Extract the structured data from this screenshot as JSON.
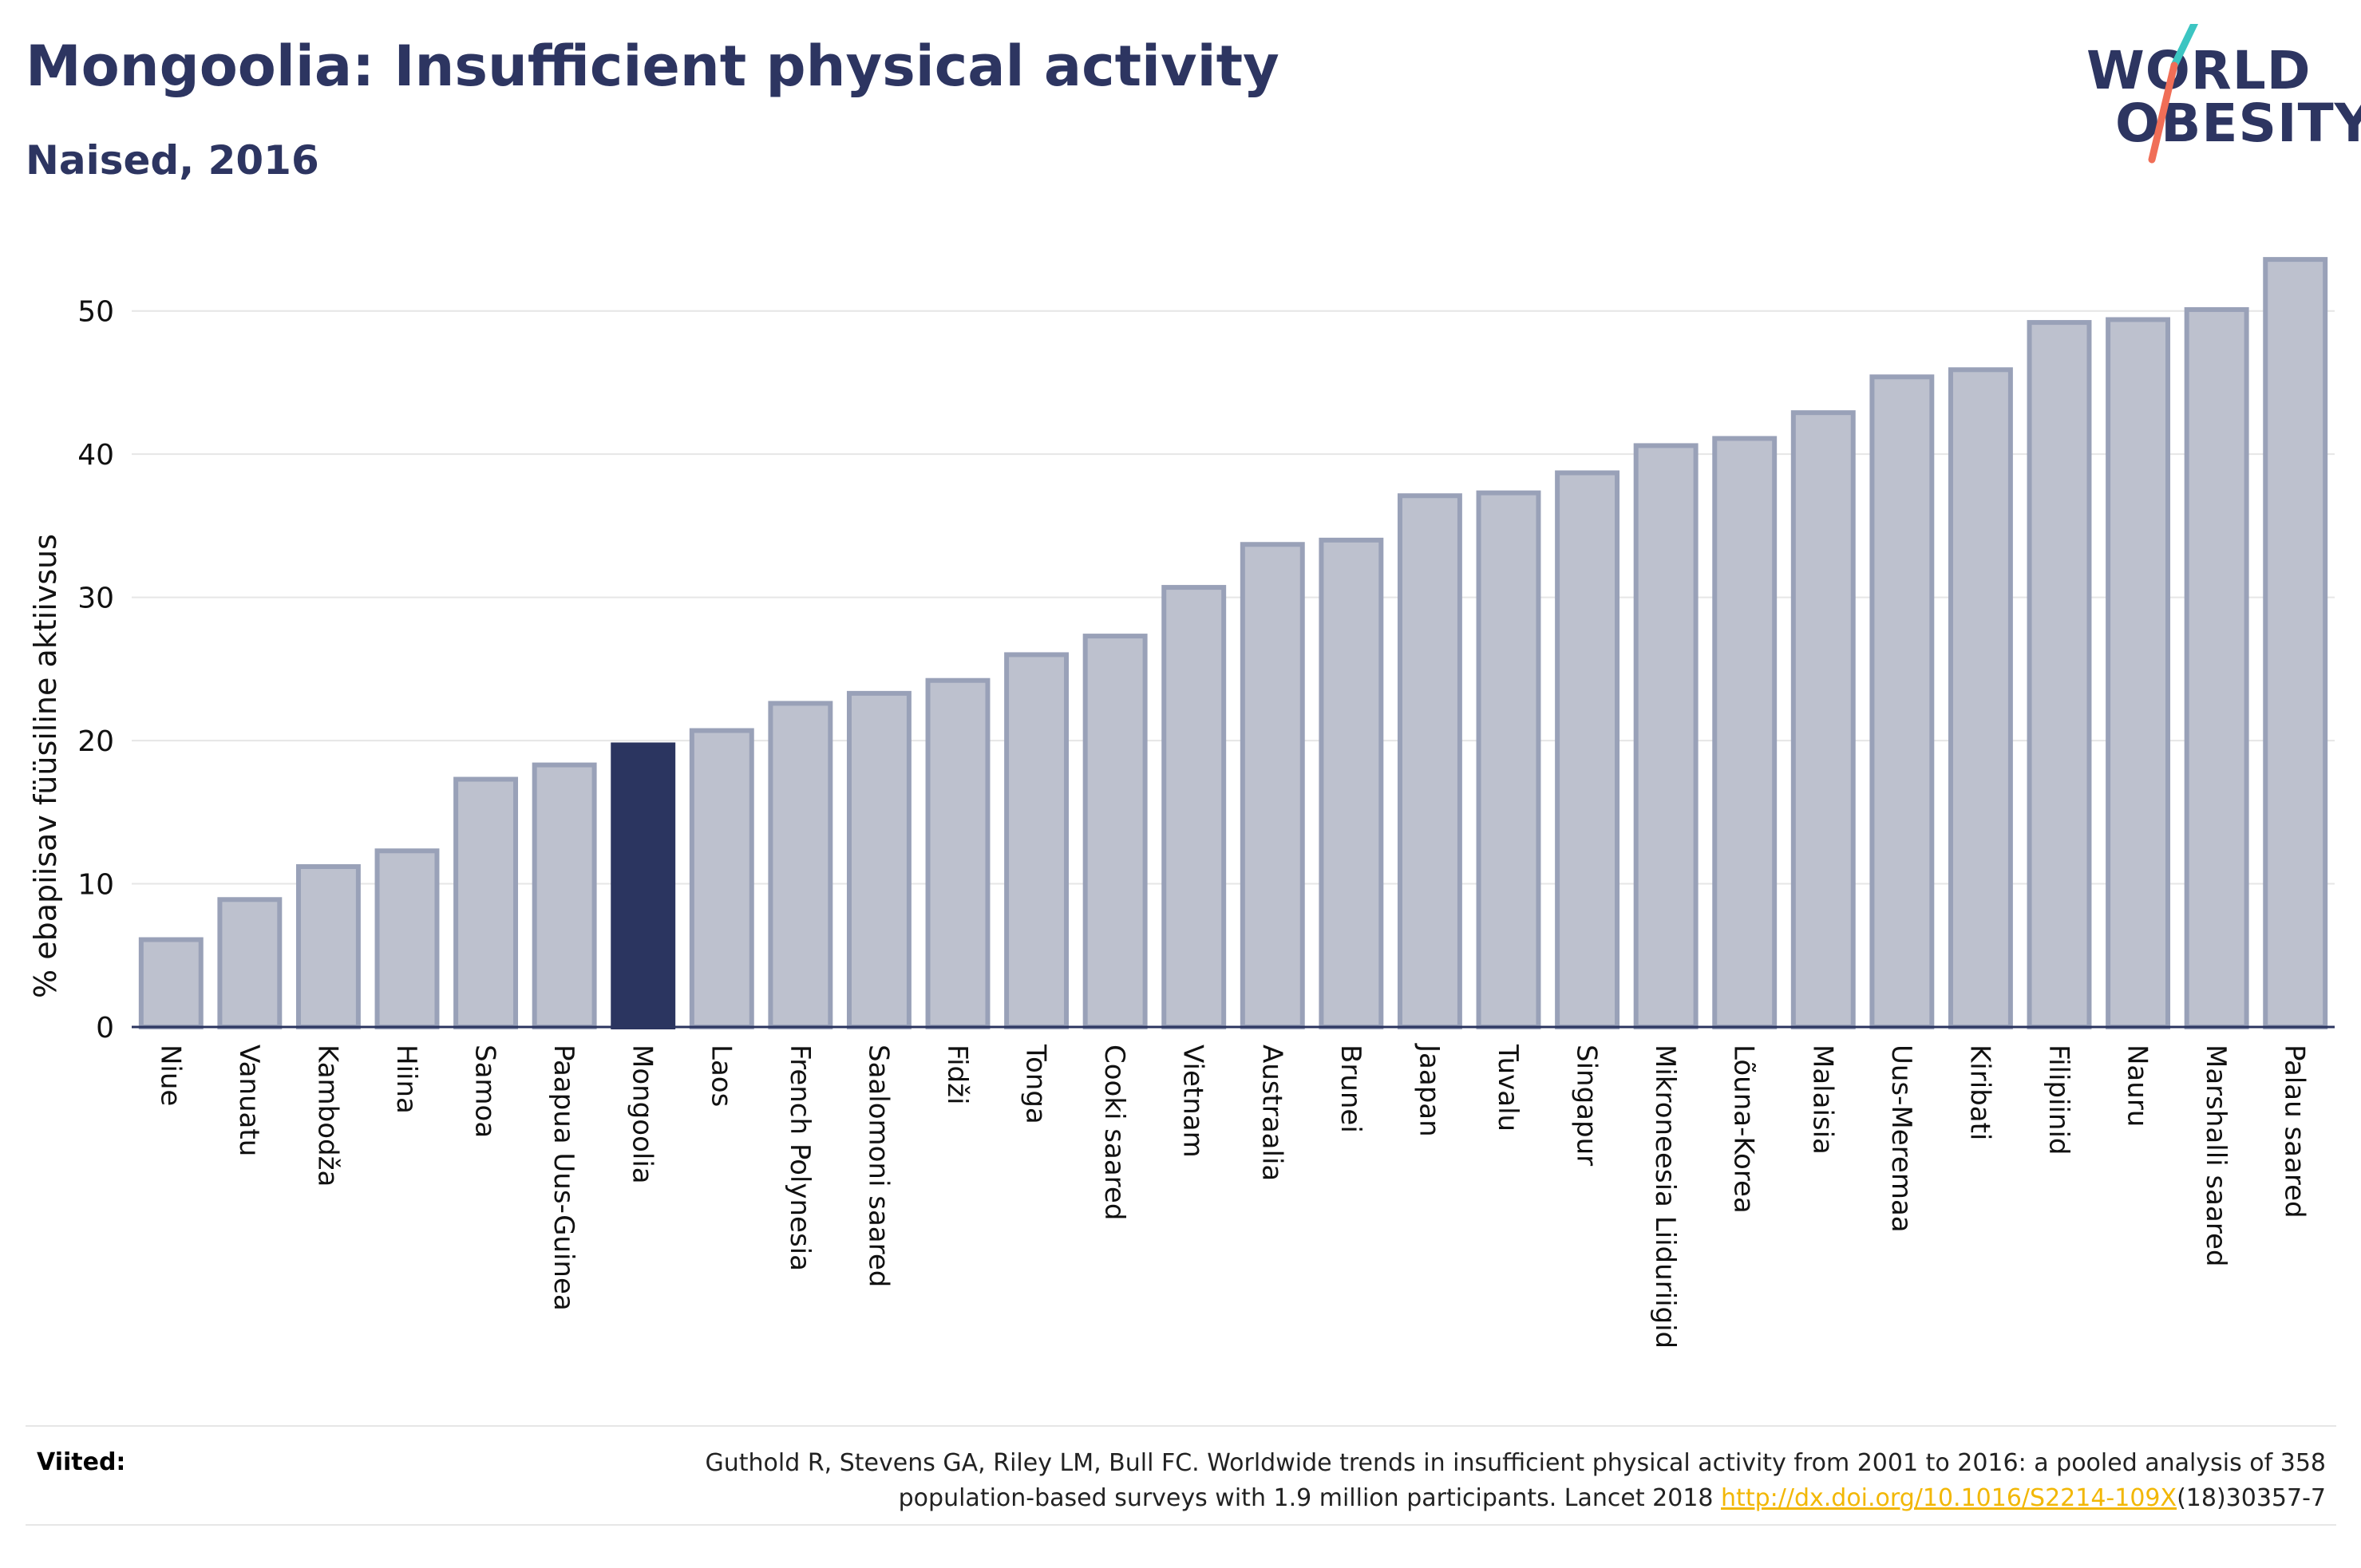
{
  "header": {
    "title": "Mongoolia: Insufficient physical activity",
    "subtitle": "Naised, 2016"
  },
  "logo": {
    "line1": "WORLD",
    "line2": "OBESITY",
    "accent_colors": [
      "#3cc5c2",
      "#f06e57"
    ]
  },
  "colors": {
    "bar_default": "#bdc1ce",
    "bar_default_stroke": "#99a1b8",
    "bar_highlight": "#2b3560",
    "axis_text": "#111111",
    "grid": "#e6e6e6"
  },
  "chart_data": {
    "type": "bar",
    "xlabel": "",
    "ylabel": "% ebapiisav füüsiline aktiivsus",
    "ylim": [
      0,
      55
    ],
    "yticks": [
      0,
      10,
      20,
      30,
      40,
      50
    ],
    "grid": true,
    "highlight": "Mongoolia",
    "categories": [
      "Niue",
      "Vanuatu",
      "Kambodža",
      "Hiina",
      "Samoa",
      "Paapua Uus-Guinea",
      "Mongoolia",
      "Laos",
      "French Polynesia",
      "Saalomoni saared",
      "Fidži",
      "Tonga",
      "Cooki saared",
      "Vietnam",
      "Austraalia",
      "Brunei",
      "Jaapan",
      "Tuvalu",
      "Singapur",
      "Mikroneesia Liiduriigid",
      "Lõuna-Korea",
      "Malaisia",
      "Uus-Meremaa",
      "Kiribati",
      "Filipiinid",
      "Nauru",
      "Marshalli saared",
      "Palau saared"
    ],
    "values": [
      6.1,
      8.9,
      11.2,
      12.3,
      17.3,
      18.3,
      19.7,
      20.7,
      22.6,
      23.3,
      24.2,
      26.0,
      27.3,
      30.7,
      33.7,
      34.0,
      37.1,
      37.3,
      38.7,
      40.6,
      41.1,
      42.9,
      45.4,
      45.9,
      49.2,
      49.4,
      50.1,
      53.6
    ]
  },
  "footer": {
    "label": "Viited:",
    "citation_line1": "Guthold R, Stevens GA, Riley LM, Bull FC. Worldwide trends in insufficient physical activity from 2001 to 2016: a pooled analysis of 358",
    "citation_line2_pre": "population-based surveys with 1.9 million participants. Lancet 2018 ",
    "link_text": "http://dx.doi.org/10.1016/S2214-109X",
    "citation_line2_post": "(18)30357-7"
  }
}
